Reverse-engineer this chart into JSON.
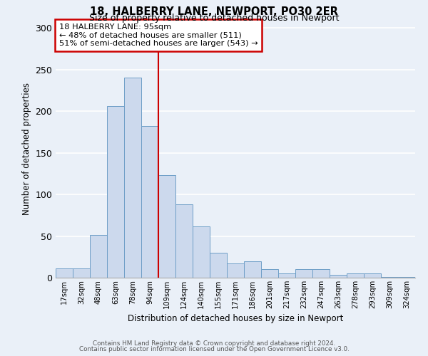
{
  "title1": "18, HALBERRY LANE, NEWPORT, PO30 2ER",
  "title2": "Size of property relative to detached houses in Newport",
  "xlabel": "Distribution of detached houses by size in Newport",
  "ylabel": "Number of detached properties",
  "bar_labels": [
    "17sqm",
    "32sqm",
    "48sqm",
    "63sqm",
    "78sqm",
    "94sqm",
    "109sqm",
    "124sqm",
    "140sqm",
    "155sqm",
    "171sqm",
    "186sqm",
    "201sqm",
    "217sqm",
    "232sqm",
    "247sqm",
    "263sqm",
    "278sqm",
    "293sqm",
    "309sqm",
    "324sqm"
  ],
  "bar_values": [
    11,
    11,
    51,
    206,
    240,
    182,
    123,
    88,
    62,
    30,
    17,
    20,
    10,
    5,
    10,
    10,
    3,
    5,
    5,
    1,
    1
  ],
  "bar_color": "#ccd9ed",
  "bar_edge_color": "#6e9ec7",
  "vline_color": "#cc0000",
  "annotation_title": "18 HALBERRY LANE: 95sqm",
  "annotation_line1": "← 48% of detached houses are smaller (511)",
  "annotation_line2": "51% of semi-detached houses are larger (543) →",
  "annotation_box_color": "#ffffff",
  "annotation_box_edge": "#cc0000",
  "ylim": [
    0,
    310
  ],
  "yticks": [
    0,
    50,
    100,
    150,
    200,
    250,
    300
  ],
  "background_color": "#eaf0f8",
  "grid_color": "#ffffff",
  "footer1": "Contains HM Land Registry data © Crown copyright and database right 2024.",
  "footer2": "Contains public sector information licensed under the Open Government Licence v3.0."
}
